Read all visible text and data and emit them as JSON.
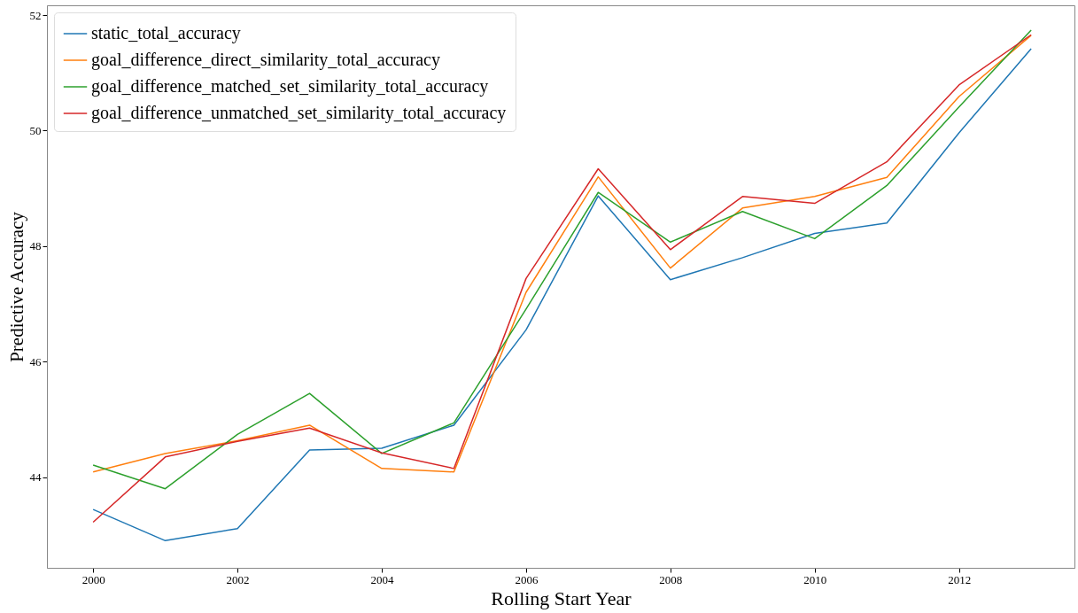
{
  "chart_data": {
    "type": "line",
    "xlabel": "Rolling Start Year",
    "ylabel": "Predictive Accuracy",
    "x": [
      2000,
      2001,
      2002,
      2003,
      2004,
      2005,
      2006,
      2007,
      2008,
      2009,
      2010,
      2011,
      2012,
      2013
    ],
    "series": [
      {
        "name": "static_total_accuracy",
        "color": "#1f77b4",
        "values": [
          43.44,
          42.9,
          43.11,
          44.47,
          44.5,
          44.9,
          46.55,
          48.87,
          47.42,
          47.8,
          48.22,
          48.4,
          49.96,
          51.42
        ]
      },
      {
        "name": "goal_difference_direct_similarity_total_accuracy",
        "color": "#ff7f0e",
        "values": [
          44.09,
          44.41,
          44.63,
          44.9,
          44.15,
          44.09,
          47.2,
          49.2,
          47.62,
          48.66,
          48.86,
          49.19,
          50.59,
          51.65
        ]
      },
      {
        "name": "goal_difference_matched_set_similarity_total_accuracy",
        "color": "#2ca02c",
        "values": [
          44.21,
          43.8,
          44.74,
          45.45,
          44.41,
          44.94,
          46.91,
          48.93,
          48.07,
          48.6,
          48.13,
          49.05,
          50.41,
          51.74
        ]
      },
      {
        "name": "goal_difference_unmatched_set_similarity_total_accuracy",
        "color": "#d62728",
        "values": [
          43.22,
          44.35,
          44.62,
          44.85,
          44.42,
          44.15,
          47.44,
          49.34,
          47.94,
          48.86,
          48.74,
          49.46,
          50.79,
          51.66
        ]
      }
    ],
    "xlim": [
      1999.36,
      2013.6
    ],
    "xticks": [
      2000,
      2002,
      2004,
      2006,
      2008,
      2010,
      2012
    ],
    "ylim": [
      42.43,
      52.17
    ],
    "yticks": [
      44,
      46,
      48,
      50,
      52
    ],
    "grid": false,
    "legend": "top left",
    "marker": "none",
    "line_style": "solid"
  }
}
